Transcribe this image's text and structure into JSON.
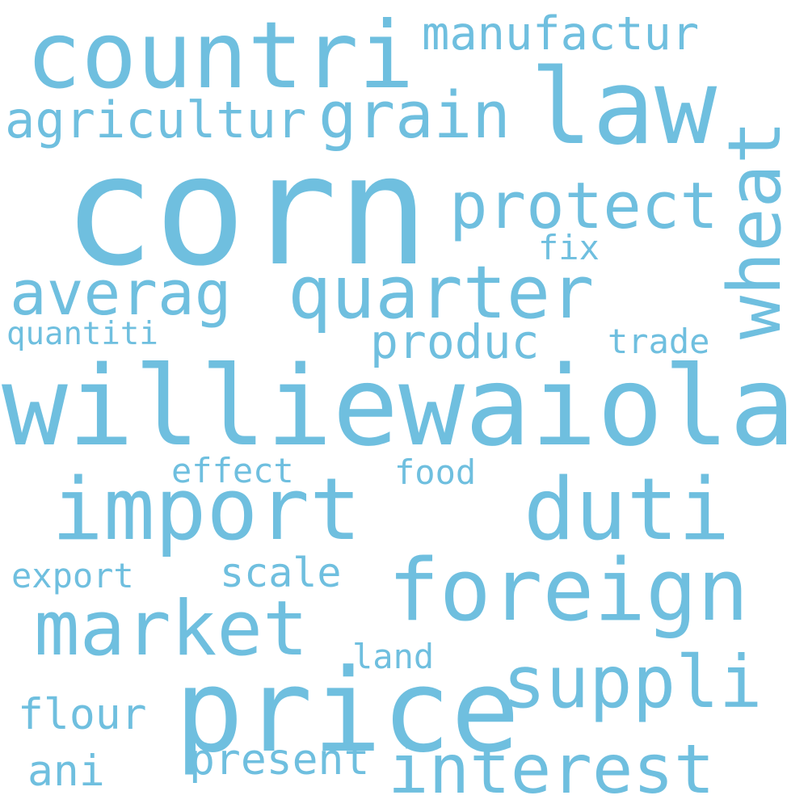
{
  "word_cloud": {
    "color": "#6fbfdf",
    "background": "#ffffff",
    "words": {
      "corn": "corn",
      "williewaiola": "williewaiola",
      "countri": "countri",
      "law": "law",
      "wheat": "wheat",
      "import": "import",
      "duti": "duti",
      "foreign": "foreign",
      "price": "price",
      "quarter": "quarter",
      "market": "market",
      "suppli": "suppli",
      "protect": "protect",
      "grain": "grain",
      "interest": "interest",
      "agricultur": "agricultur",
      "manufactur": "manufactur",
      "averag": "averag",
      "produc": "produc",
      "scale": "scale",
      "present": "present",
      "effect": "effect",
      "food": "food",
      "export": "export",
      "flour": "flour",
      "ani": "ani",
      "land": "land",
      "trade": "trade",
      "quantiti": "quantiti",
      "fix": "fix"
    }
  }
}
